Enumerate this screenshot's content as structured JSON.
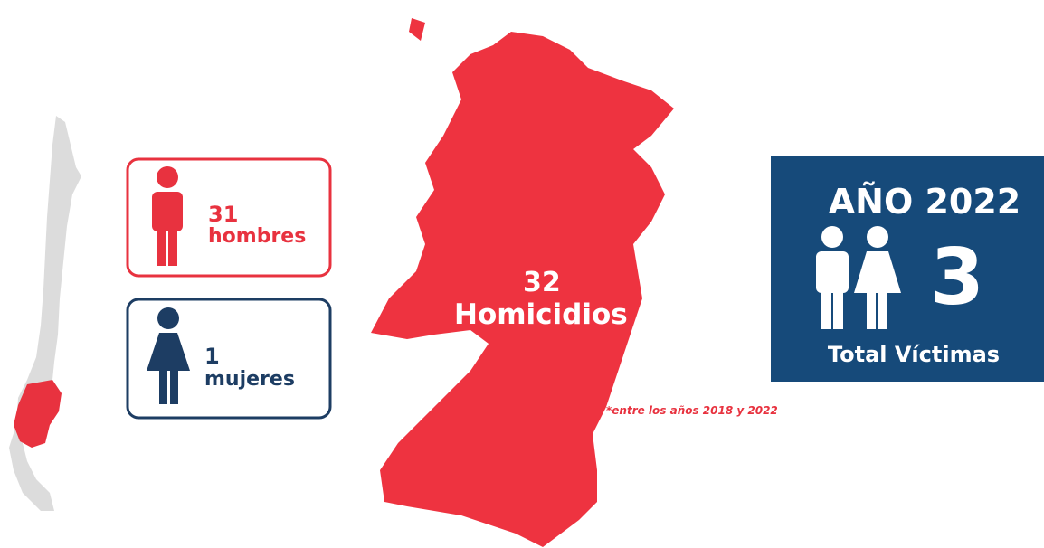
{
  "men": {
    "count": 31,
    "label": "hombres"
  },
  "women": {
    "count": 1,
    "label": "mujeres"
  },
  "region": {
    "count": 32,
    "label": "Homicidios",
    "note": "*entre los años 2018 y 2022"
  },
  "year_box": {
    "title": "AÑO 2022",
    "count": 3,
    "label": "Total Víctimas"
  }
}
